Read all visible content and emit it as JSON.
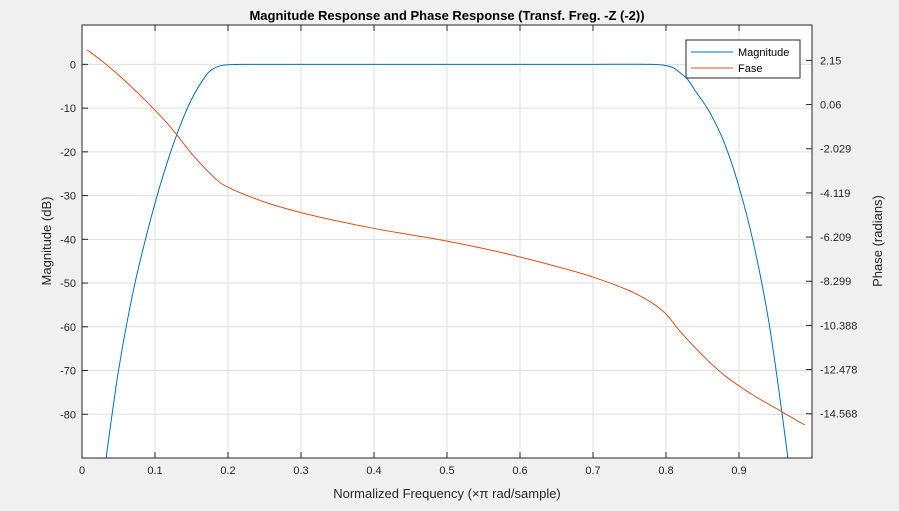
{
  "chart_data": {
    "type": "line",
    "title": "Magnitude Response and Phase Response (Transf. Freg. -Z (-2))",
    "xlabel": "Normalized Frequency (×π rad/sample)",
    "ylabel_left": "Magnitude (dB)",
    "ylabel_right": "Phase (radians)",
    "xlim": [
      0,
      1
    ],
    "ylim_left": [
      -90,
      9
    ],
    "ylim_right": [
      -16.663,
      3.826
    ],
    "grid": true,
    "legend_position": "top-right",
    "x_ticks": [
      "0",
      "0.1",
      "0.2",
      "0.3",
      "0.4",
      "0.5",
      "0.6",
      "0.7",
      "0.8",
      "0.9"
    ],
    "y_ticks_left": [
      "0",
      "-10",
      "-20",
      "-30",
      "-40",
      "-50",
      "-60",
      "-70",
      "-80"
    ],
    "y_ticks_right": [
      "2.15",
      "0.06",
      "-2.029",
      "-4.119",
      "-6.209",
      "-8.299",
      "-10.388",
      "-12.478",
      "-14.568"
    ],
    "series": [
      {
        "name": "Magnitude",
        "axis": "left",
        "color": "#0072BD",
        "x": [
          0.033,
          0.05,
          0.07,
          0.09,
          0.11,
          0.13,
          0.15,
          0.17,
          0.18,
          0.19,
          0.2,
          0.22,
          0.3,
          0.4,
          0.5,
          0.6,
          0.7,
          0.78,
          0.8,
          0.81,
          0.82,
          0.83,
          0.84,
          0.86,
          0.88,
          0.9,
          0.92,
          0.94,
          0.955,
          0.967
        ],
        "y": [
          -90,
          -70,
          -52,
          -38,
          -26,
          -16,
          -8,
          -2.5,
          -1,
          -0.3,
          -0.1,
          0,
          0,
          0,
          0,
          0,
          0,
          0,
          -0.3,
          -0.8,
          -2,
          -3.5,
          -6,
          -11,
          -18,
          -28,
          -41,
          -58,
          -75,
          -90
        ]
      },
      {
        "name": "Fase",
        "axis": "right",
        "color": "#D95319",
        "x": [
          0.007,
          0.03,
          0.06,
          0.09,
          0.12,
          0.15,
          0.18,
          0.2,
          0.25,
          0.3,
          0.35,
          0.4,
          0.45,
          0.5,
          0.55,
          0.6,
          0.65,
          0.7,
          0.75,
          0.78,
          0.8,
          0.82,
          0.85,
          0.88,
          0.92,
          0.96,
          0.99
        ],
        "y": [
          2.65,
          2.05,
          1.15,
          0.15,
          -0.95,
          -2.25,
          -3.35,
          -3.85,
          -4.55,
          -5.05,
          -5.45,
          -5.8,
          -6.1,
          -6.4,
          -6.75,
          -7.15,
          -7.6,
          -8.1,
          -8.75,
          -9.3,
          -9.85,
          -10.7,
          -11.8,
          -12.75,
          -13.7,
          -14.5,
          -15.1
        ]
      }
    ]
  }
}
